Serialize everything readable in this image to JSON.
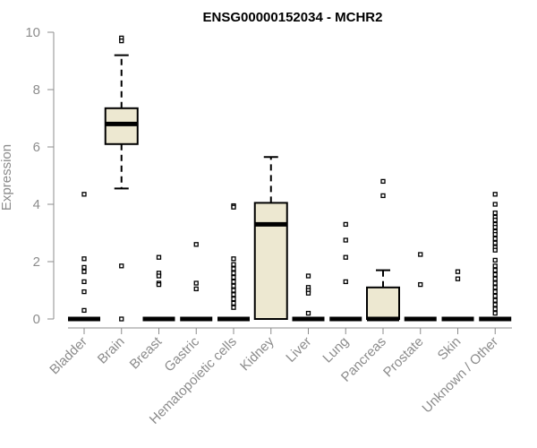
{
  "chart_data": {
    "type": "boxplot",
    "title": "ENSG00000152034 - MCHR2",
    "ylabel": "Expression",
    "xlabel": "",
    "ylim": [
      0,
      10
    ],
    "yticks": [
      "0",
      "2",
      "4",
      "6",
      "8",
      "10"
    ],
    "box_fill": "#ede8d1",
    "categories": [
      "Bladder",
      "Brain",
      "Breast",
      "Gastric",
      "Hematopoietic cells",
      "Kidney",
      "Liver",
      "Lung",
      "Pancreas",
      "Prostate",
      "Skin",
      "Unknown / Other"
    ],
    "boxes": [
      {
        "min": 0,
        "q1": 0,
        "median": 0,
        "q3": 0,
        "max": 0,
        "outliers": [
          4.35,
          2.1,
          1.8,
          1.65,
          1.3,
          0.95,
          0.3
        ]
      },
      {
        "min": 4.55,
        "q1": 6.1,
        "median": 6.8,
        "q3": 7.35,
        "max": 9.2,
        "outliers": [
          9.8,
          9.7,
          1.85,
          0
        ]
      },
      {
        "min": 0,
        "q1": 0,
        "median": 0,
        "q3": 0,
        "max": 0,
        "outliers": [
          2.15,
          1.6,
          1.5,
          1.25,
          1.2
        ]
      },
      {
        "min": 0,
        "q1": 0,
        "median": 0,
        "q3": 0,
        "max": 0,
        "outliers": [
          2.6,
          1.25,
          1.05
        ]
      },
      {
        "min": 0,
        "q1": 0,
        "median": 0,
        "q3": 0,
        "max": 0,
        "outliers": [
          3.95,
          3.9,
          2.1,
          1.9,
          1.75,
          1.6,
          1.45,
          1.3,
          1.15,
          1.0,
          0.85,
          0.7,
          0.55,
          0.4
        ]
      },
      {
        "min": 0,
        "q1": 0,
        "median": 3.3,
        "q3": 4.05,
        "max": 5.65,
        "outliers": []
      },
      {
        "min": 0,
        "q1": 0,
        "median": 0,
        "q3": 0,
        "max": 0,
        "outliers": [
          1.5,
          1.1,
          1.0,
          0.9,
          0.2
        ]
      },
      {
        "min": 0,
        "q1": 0,
        "median": 0,
        "q3": 0,
        "max": 0,
        "outliers": [
          3.3,
          2.75,
          2.15,
          1.3
        ]
      },
      {
        "min": 0,
        "q1": 0,
        "median": 0,
        "q3": 1.1,
        "max": 1.7,
        "outliers": [
          4.8,
          4.3
        ]
      },
      {
        "min": 0,
        "q1": 0,
        "median": 0,
        "q3": 0,
        "max": 0,
        "outliers": [
          2.25,
          1.2
        ]
      },
      {
        "min": 0,
        "q1": 0,
        "median": 0,
        "q3": 0,
        "max": 0,
        "outliers": [
          1.65,
          1.4
        ]
      },
      {
        "min": 0,
        "q1": 0,
        "median": 0,
        "q3": 0,
        "max": 0,
        "outliers": [
          4.35,
          4.0,
          3.7,
          3.55,
          3.45,
          3.3,
          3.2,
          3.05,
          2.95,
          2.8,
          2.65,
          2.5,
          2.4,
          2.05,
          1.85,
          1.7,
          1.55,
          1.4,
          1.25,
          1.1,
          0.95,
          0.8,
          0.65,
          0.5,
          0.35,
          0.2
        ]
      }
    ]
  }
}
